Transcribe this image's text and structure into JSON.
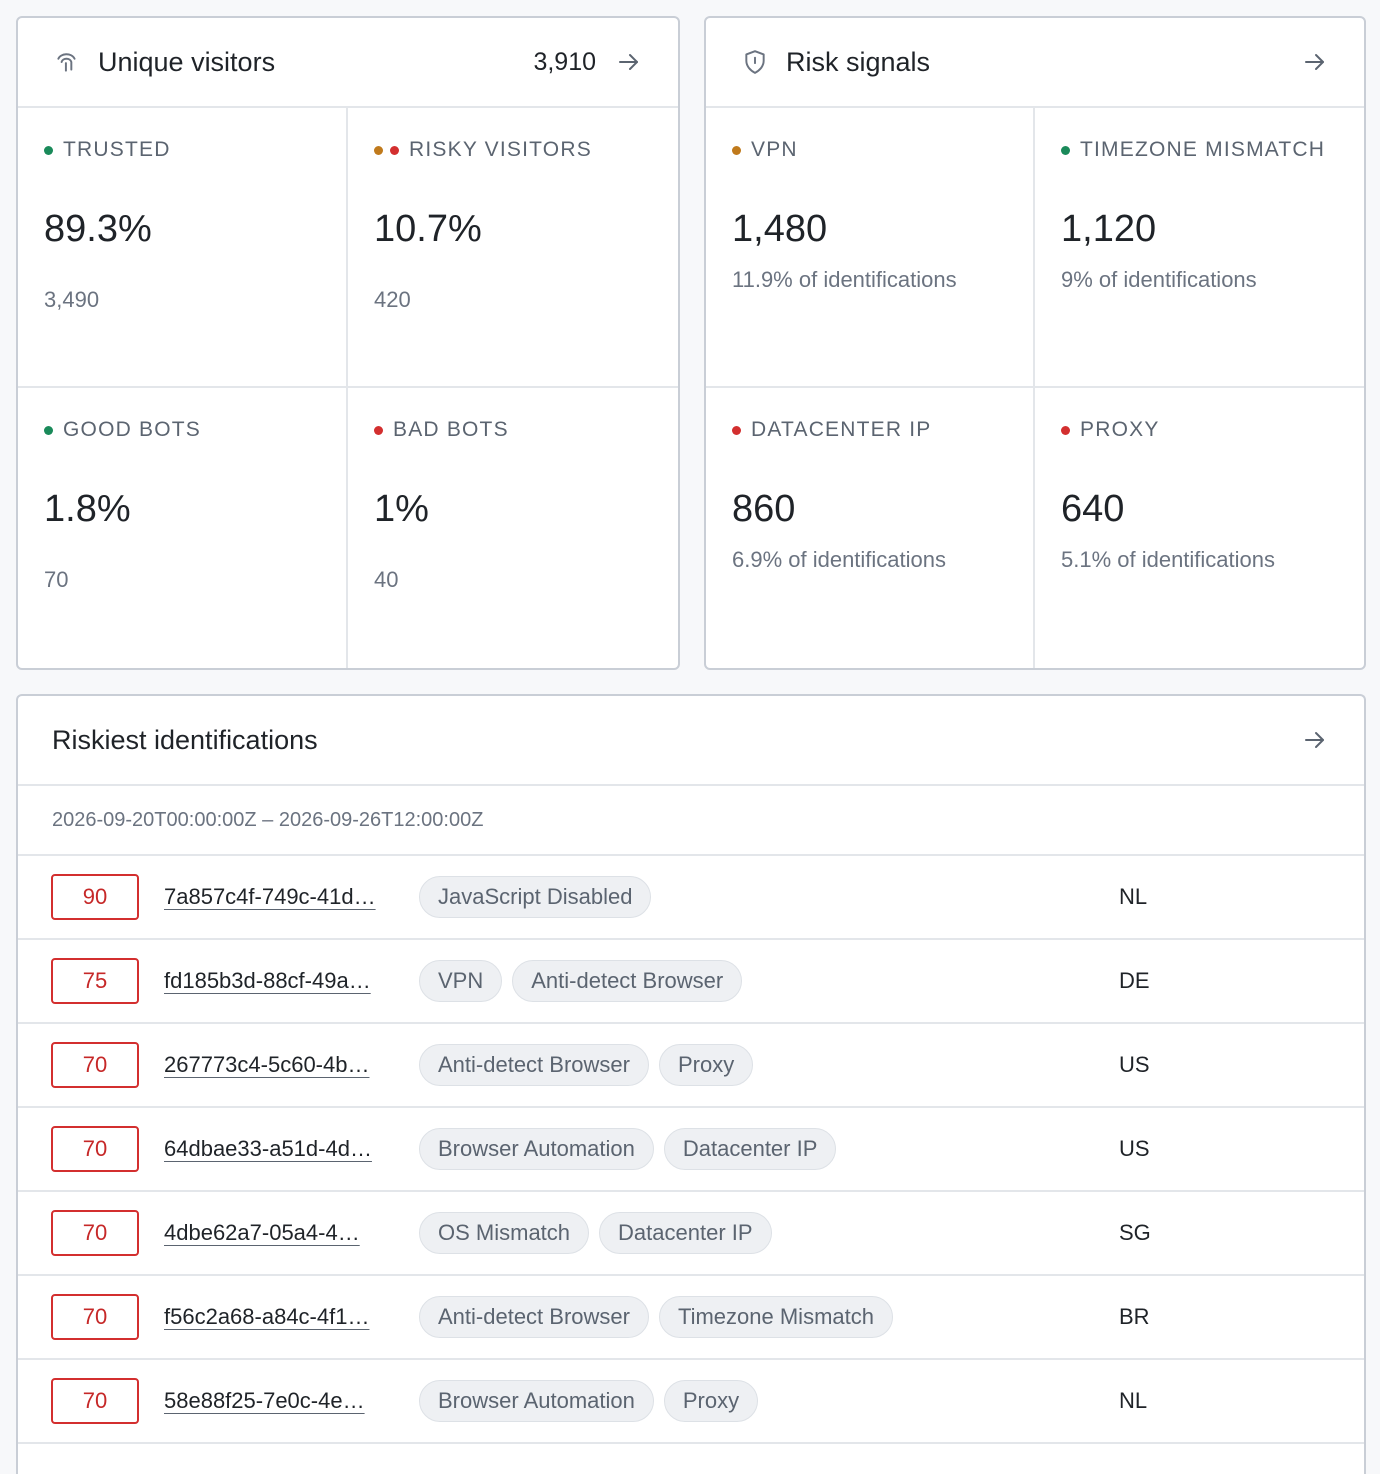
{
  "colors": {
    "green": "#1a8a5a",
    "orange": "#c07a1c",
    "red": "#d32f2f"
  },
  "visitors": {
    "title": "Unique visitors",
    "count": "3,910",
    "icon": "fingerprint-icon",
    "cells": [
      {
        "label": "TRUSTED",
        "dots": [
          "green"
        ],
        "value": "89.3%",
        "sub": "3,490"
      },
      {
        "label": "RISKY VISITORS",
        "dots": [
          "orange",
          "red"
        ],
        "value": "10.7%",
        "sub": "420"
      },
      {
        "label": "GOOD BOTS",
        "dots": [
          "green"
        ],
        "value": "1.8%",
        "sub": "70"
      },
      {
        "label": "BAD BOTS",
        "dots": [
          "red"
        ],
        "value": "1%",
        "sub": "40"
      }
    ]
  },
  "risk": {
    "title": "Risk signals",
    "icon": "shield-icon",
    "cells": [
      {
        "label": "VPN",
        "dots": [
          "orange"
        ],
        "value": "1,480",
        "sub": "11.9% of identifications"
      },
      {
        "label": "TIMEZONE MISMATCH",
        "dots": [
          "green"
        ],
        "value": "1,120",
        "sub": "9% of identifications"
      },
      {
        "label": "DATACENTER IP",
        "dots": [
          "red"
        ],
        "value": "860",
        "sub": "6.9% of identifications"
      },
      {
        "label": "PROXY",
        "dots": [
          "red"
        ],
        "value": "640",
        "sub": "5.1% of identifications"
      }
    ]
  },
  "riskiest": {
    "title": "Riskiest identifications",
    "range": "2026-09-20T00:00:00Z – 2026-09-26T12:00:00Z",
    "rows": [
      {
        "score": "90",
        "id": "7a857c4f-749c-41d…",
        "tags": [
          "JavaScript Disabled"
        ],
        "country": "NL"
      },
      {
        "score": "75",
        "id": "fd185b3d-88cf-49a…",
        "tags": [
          "VPN",
          "Anti-detect Browser"
        ],
        "country": "DE"
      },
      {
        "score": "70",
        "id": "267773c4-5c60-4b…",
        "tags": [
          "Anti-detect Browser",
          "Proxy"
        ],
        "country": "US"
      },
      {
        "score": "70",
        "id": "64dbae33-a51d-4d…",
        "tags": [
          "Browser Automation",
          "Datacenter IP"
        ],
        "country": "US"
      },
      {
        "score": "70",
        "id": "4dbe62a7-05a4-4…",
        "tags": [
          "OS Mismatch",
          "Datacenter IP"
        ],
        "country": "SG"
      },
      {
        "score": "70",
        "id": "f56c2a68-a84c-4f1…",
        "tags": [
          "Anti-detect Browser",
          "Timezone Mismatch"
        ],
        "country": "BR"
      },
      {
        "score": "70",
        "id": "58e88f25-7e0c-4e…",
        "tags": [
          "Browser Automation",
          "Proxy"
        ],
        "country": "NL"
      }
    ]
  }
}
